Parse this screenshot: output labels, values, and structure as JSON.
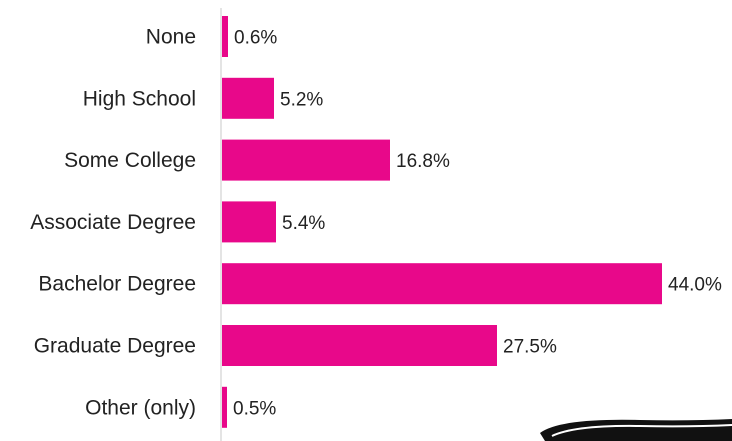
{
  "chart_data": {
    "type": "bar",
    "orientation": "horizontal",
    "categories": [
      "None",
      "High School",
      "Some College",
      "Associate Degree",
      "Bachelor Degree",
      "Graduate Degree",
      "Other (only)"
    ],
    "values": [
      0.6,
      5.2,
      16.8,
      5.4,
      44.0,
      27.5,
      0.5
    ],
    "value_labels": [
      "0.6%",
      "5.2%",
      "16.8%",
      "5.4%",
      "44.0%",
      "27.5%",
      "0.5%"
    ],
    "value_unit": "%",
    "bar_color": "#e8088a",
    "grid": false
  }
}
